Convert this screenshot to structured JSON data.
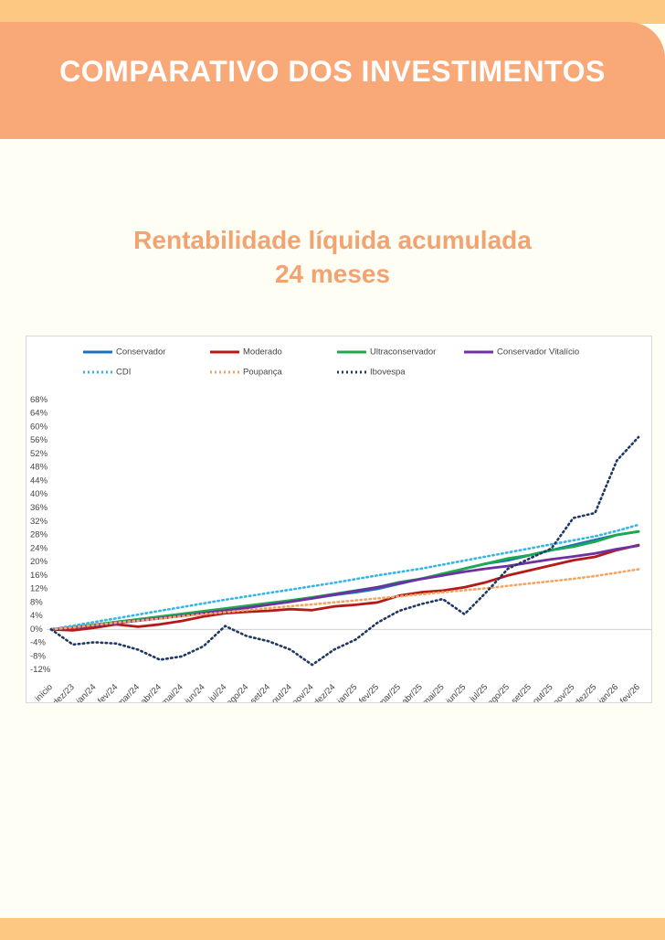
{
  "header": {
    "title": "COMPARATIVO DOS INVESTIMENTOS"
  },
  "chart_data": {
    "type": "line",
    "title": "Rentabilidade líquida acumulada",
    "subtitle": "24 meses",
    "categories": [
      "início",
      "dez/23",
      "jan/24",
      "fev/24",
      "mar/24",
      "abr/24",
      "mai/24",
      "jun/24",
      "jul/24",
      "ago/24",
      "set/24",
      "out/24",
      "nov/24",
      "dez/24",
      "jan/25",
      "fev/25",
      "mar/25",
      "abr/25",
      "mai/25",
      "jun/25",
      "jul/25",
      "ago/25",
      "set/25",
      "out/25",
      "nov/25",
      "dez/25",
      "jan/26",
      "fev/26"
    ],
    "series": [
      {
        "name": "Conservador",
        "color": "#1f6fbf",
        "dotted": false,
        "values": [
          0,
          0.5,
          1.2,
          2,
          2.8,
          3.5,
          4.3,
          5,
          6,
          6.8,
          7.6,
          8.4,
          9.2,
          10.2,
          11,
          12,
          13.5,
          15,
          16,
          18,
          19.5,
          20.5,
          22,
          23.5,
          25,
          26.5,
          28,
          29
        ]
      },
      {
        "name": "Moderado",
        "color": "#b51a1a",
        "dotted": false,
        "values": [
          0,
          -0.3,
          0.5,
          1.5,
          0.8,
          1.5,
          2.5,
          3.8,
          4.8,
          5.2,
          5.5,
          6,
          5.7,
          6.8,
          7.3,
          8,
          10,
          11,
          11.5,
          12.5,
          14,
          16,
          17.5,
          19,
          20.5,
          21.5,
          23.5,
          25
        ]
      },
      {
        "name": "Ultraconservador",
        "color": "#1ea84f",
        "dotted": false,
        "values": [
          0,
          0.7,
          1.4,
          2.2,
          3,
          3.8,
          4.6,
          5.4,
          6.2,
          7,
          7.8,
          8.6,
          9.5,
          10.5,
          11.5,
          12.5,
          14,
          15,
          16.5,
          18,
          19.5,
          21,
          22,
          23.5,
          24.5,
          26,
          28,
          29
        ]
      },
      {
        "name": "Conservador Vitalício",
        "color": "#7030a0",
        "dotted": false,
        "values": [
          0,
          0.6,
          1.2,
          1.9,
          2.6,
          3.3,
          4,
          4.8,
          5.6,
          6.4,
          7.3,
          8.2,
          9.2,
          10.3,
          11.4,
          12.5,
          13.7,
          14.9,
          16,
          17.1,
          18,
          18.8,
          19.8,
          20.8,
          21.6,
          22.5,
          23.8,
          24.8
        ]
      },
      {
        "name": "CDI",
        "color": "#33b5ea",
        "dotted": true,
        "values": [
          0,
          1.1,
          2.2,
          3.3,
          4.4,
          5.5,
          6.6,
          7.7,
          8.8,
          9.8,
          10.8,
          11.8,
          12.8,
          13.8,
          14.9,
          16,
          17,
          18,
          19.2,
          20.4,
          21.6,
          22.8,
          24,
          25.2,
          26.4,
          27.6,
          29.2,
          31
        ]
      },
      {
        "name": "Poupança",
        "color": "#f4a460",
        "dotted": true,
        "values": [
          0,
          0.6,
          1.3,
          2,
          2.6,
          3.2,
          3.9,
          4.5,
          5.1,
          5.7,
          6.3,
          6.9,
          7.4,
          8,
          8.6,
          9.2,
          9.8,
          10.4,
          11,
          11.6,
          12.2,
          12.9,
          13.6,
          14.3,
          15,
          15.8,
          16.8,
          17.8
        ]
      },
      {
        "name": "Ibovespa",
        "color": "#1f3864",
        "dotted": true,
        "values": [
          0,
          -4.5,
          -3.8,
          -4.2,
          -6,
          -9,
          -8,
          -5,
          1,
          -2,
          -3.5,
          -6,
          -10.5,
          -6,
          -3,
          2,
          5.5,
          7.5,
          9,
          4.5,
          11,
          18,
          21,
          24,
          33,
          34.5,
          50,
          57
        ]
      }
    ],
    "ylim": [
      -14,
      70
    ],
    "yticks": [
      {
        "value": -12,
        "label": "-12%"
      },
      {
        "value": -8,
        "label": "-8%"
      },
      {
        "value": -4,
        "label": "-4%"
      },
      {
        "value": 0,
        "label": "0%"
      },
      {
        "value": 4,
        "label": "4%"
      },
      {
        "value": 8,
        "label": "8%"
      },
      {
        "value": 12,
        "label": "12%"
      },
      {
        "value": 16,
        "label": "16%"
      },
      {
        "value": 20,
        "label": "20%"
      },
      {
        "value": 24,
        "label": "24%"
      },
      {
        "value": 28,
        "label": "28%"
      },
      {
        "value": 32,
        "label": "32%"
      },
      {
        "value": 36,
        "label": "36%"
      },
      {
        "value": 40,
        "label": "40%"
      },
      {
        "value": 44,
        "label": "44%"
      },
      {
        "value": 48,
        "label": "48%"
      },
      {
        "value": 52,
        "label": "52%"
      },
      {
        "value": 56,
        "label": "56%"
      },
      {
        "value": 60,
        "label": "60%"
      },
      {
        "value": 64,
        "label": "64%"
      },
      {
        "value": 68,
        "label": "68%"
      }
    ],
    "grid": false
  }
}
